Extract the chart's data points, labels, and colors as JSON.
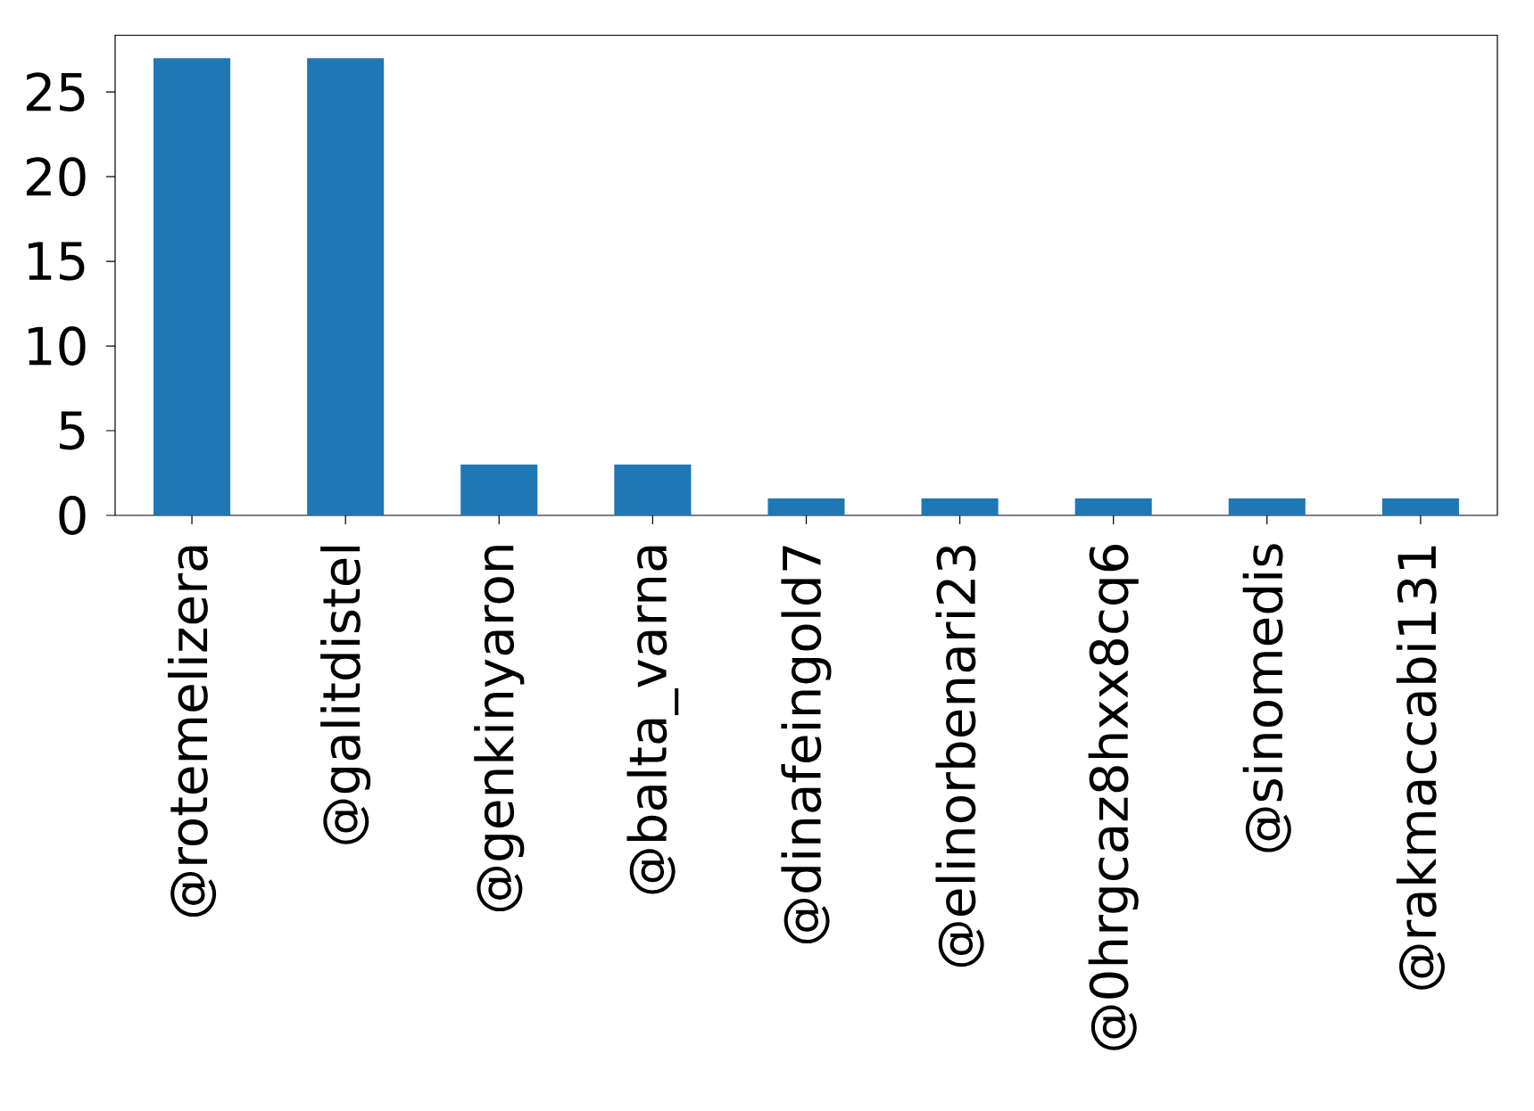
{
  "chart_data": {
    "type": "bar",
    "categories": [
      "@rotemelizera",
      "@galitdistel",
      "@genkinyaron",
      "@balta_varna",
      "@dinafeingold7",
      "@elinorbenari23",
      "@0hrgcaz8hxx8cq6",
      "@sinomedis",
      "@rakmaccabi131"
    ],
    "values": [
      27,
      27,
      3,
      3,
      1,
      1,
      1,
      1,
      1
    ],
    "color": "#1f77b4",
    "ylim": [
      0,
      28.35
    ],
    "yticks": [
      0,
      5,
      10,
      15,
      20,
      25
    ]
  }
}
